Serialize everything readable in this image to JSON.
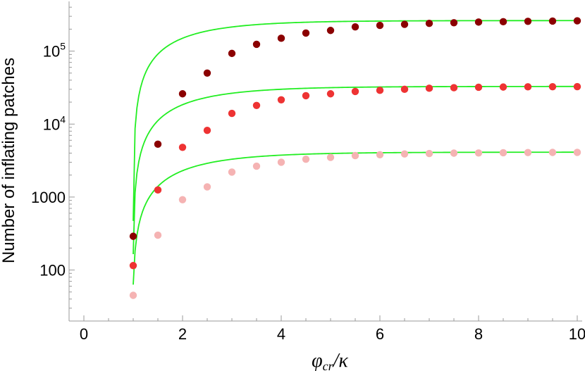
{
  "chart_data": {
    "type": "scatter",
    "title": "",
    "xlabel": "φcr/κ",
    "xlabel_main": "φ",
    "xlabel_sub": "cr",
    "xlabel_tail": "/κ",
    "ylabel": "Number of inflating patches",
    "xlim": [
      -0.3,
      10.1
    ],
    "ylim": [
      20,
      480000
    ],
    "y_scale": "log",
    "grid": false,
    "legend": "none",
    "x_ticks": [
      {
        "value": 0,
        "label": "0"
      },
      {
        "value": 2,
        "label": "2"
      },
      {
        "value": 4,
        "label": "4"
      },
      {
        "value": 6,
        "label": "6"
      },
      {
        "value": 8,
        "label": "8"
      },
      {
        "value": 10,
        "label": "10"
      }
    ],
    "y_ticks": [
      {
        "value": 100,
        "label": "100",
        "base": "",
        "exp": ""
      },
      {
        "value": 1000,
        "label": "1000",
        "base": "",
        "exp": ""
      },
      {
        "value": 10000,
        "label": "",
        "base": "10",
        "exp": "4"
      },
      {
        "value": 100000,
        "label": "",
        "base": "10",
        "exp": "5"
      }
    ],
    "fit_color": "#22ee22",
    "x": [
      1,
      1.5,
      2,
      2.5,
      3,
      3.5,
      4,
      4.5,
      5,
      5.5,
      6,
      6.5,
      7,
      7.5,
      8,
      8.5,
      9,
      9.5,
      10
    ],
    "series": [
      {
        "color": "#8b0000",
        "values": [
          290,
          5300,
          26000,
          50000,
          93000,
          124000,
          150000,
          177000,
          192000,
          215000,
          225000,
          233000,
          240000,
          245000,
          250000,
          253000,
          256000,
          258000,
          260000
        ],
        "fit": {
          "asymptote": 262000,
          "start": 470,
          "rate": 0.85
        }
      },
      {
        "color": "#ee3333",
        "values": [
          115,
          1250,
          4800,
          8200,
          14000,
          18000,
          21500,
          24500,
          26000,
          28000,
          29000,
          30000,
          31000,
          31500,
          32000,
          32200,
          32400,
          32500,
          32600
        ],
        "fit": {
          "asymptote": 32800,
          "start": 165,
          "rate": 0.82
        }
      },
      {
        "color": "#f5b3b3",
        "values": [
          45,
          300,
          920,
          1380,
          2200,
          2650,
          3000,
          3300,
          3500,
          3700,
          3800,
          3900,
          3950,
          4000,
          4020,
          4050,
          4070,
          4090,
          4100
        ],
        "fit": {
          "asymptote": 4120,
          "start": 63,
          "rate": 0.8
        }
      }
    ]
  }
}
